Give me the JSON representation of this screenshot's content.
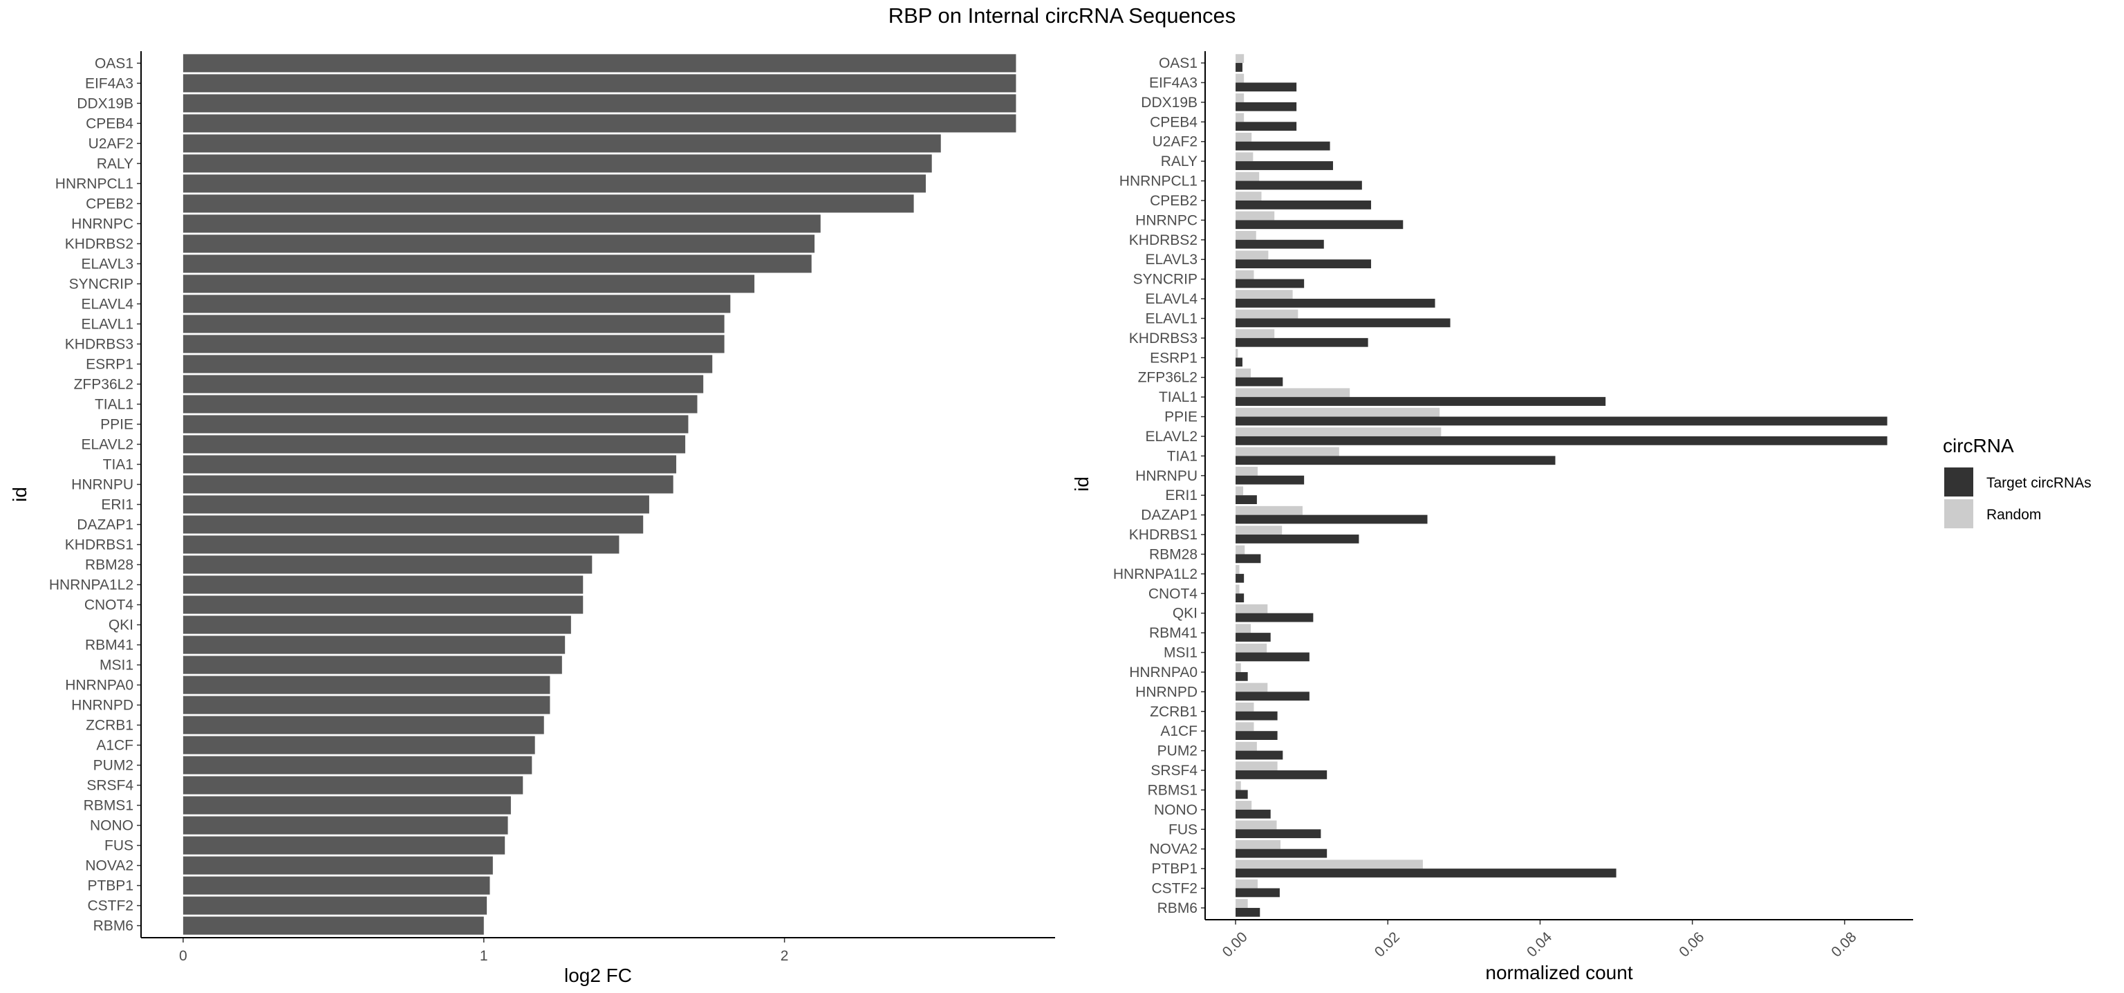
{
  "title": "RBP on Internal circRNA Sequences",
  "colors": {
    "fc_bar": "#595959",
    "target": "#333333",
    "random": "#cccccc",
    "axis": "#000000"
  },
  "chart_data": [
    {
      "type": "bar",
      "orientation": "horizontal",
      "xlabel": "log2 FC",
      "ylabel": "id",
      "xlim": [
        -0.14,
        2.9
      ],
      "xticks": [
        "0",
        "1",
        "2"
      ],
      "grid": false,
      "categories": [
        "OAS1",
        "EIF4A3",
        "DDX19B",
        "CPEB4",
        "U2AF2",
        "RALY",
        "HNRNPCL1",
        "CPEB2",
        "HNRNPC",
        "KHDRBS2",
        "ELAVL3",
        "SYNCRIP",
        "ELAVL4",
        "ELAVL1",
        "KHDRBS3",
        "ESRP1",
        "ZFP36L2",
        "TIAL1",
        "PPIE",
        "ELAVL2",
        "TIA1",
        "HNRNPU",
        "ERI1",
        "DAZAP1",
        "KHDRBS1",
        "RBM28",
        "HNRNPA1L2",
        "CNOT4",
        "QKI",
        "RBM41",
        "MSI1",
        "HNRNPA0",
        "HNRNPD",
        "ZCRB1",
        "A1CF",
        "PUM2",
        "SRSF4",
        "RBMS1",
        "NONO",
        "FUS",
        "NOVA2",
        "PTBP1",
        "CSTF2",
        "RBM6"
      ],
      "values": [
        2.77,
        2.77,
        2.77,
        2.77,
        2.52,
        2.49,
        2.47,
        2.43,
        2.12,
        2.1,
        2.09,
        1.9,
        1.82,
        1.8,
        1.8,
        1.76,
        1.73,
        1.71,
        1.68,
        1.67,
        1.64,
        1.63,
        1.55,
        1.53,
        1.45,
        1.36,
        1.33,
        1.33,
        1.29,
        1.27,
        1.26,
        1.22,
        1.22,
        1.2,
        1.17,
        1.16,
        1.13,
        1.09,
        1.08,
        1.07,
        1.03,
        1.02,
        1.01,
        1.0
      ]
    },
    {
      "type": "bar",
      "orientation": "horizontal",
      "xlabel": "normalized count",
      "ylabel": "id",
      "xlim": [
        -0.004,
        0.089
      ],
      "xticks": [
        0.0,
        0.02,
        0.04,
        0.06,
        0.08
      ],
      "xtick_labels": [
        "0.00",
        "0.02",
        "0.04",
        "0.06",
        "0.08"
      ],
      "grid": false,
      "legend": {
        "title": "circRNA",
        "position": "right"
      },
      "categories": [
        "OAS1",
        "EIF4A3",
        "DDX19B",
        "CPEB4",
        "U2AF2",
        "RALY",
        "HNRNPCL1",
        "CPEB2",
        "HNRNPC",
        "KHDRBS2",
        "ELAVL3",
        "SYNCRIP",
        "ELAVL4",
        "ELAVL1",
        "KHDRBS3",
        "ESRP1",
        "ZFP36L2",
        "TIAL1",
        "PPIE",
        "ELAVL2",
        "TIA1",
        "HNRNPU",
        "ERI1",
        "DAZAP1",
        "KHDRBS1",
        "RBM28",
        "HNRNPA1L2",
        "CNOT4",
        "QKI",
        "RBM41",
        "MSI1",
        "HNRNPA0",
        "HNRNPD",
        "ZCRB1",
        "A1CF",
        "PUM2",
        "SRSF4",
        "RBMS1",
        "NONO",
        "FUS",
        "NOVA2",
        "PTBP1",
        "CSTF2",
        "RBM6"
      ],
      "series": [
        {
          "name": "Target circRNAs",
          "values": [
            0.0009,
            0.008,
            0.008,
            0.008,
            0.0124,
            0.0128,
            0.0166,
            0.0178,
            0.022,
            0.0116,
            0.0178,
            0.009,
            0.0262,
            0.0282,
            0.0174,
            0.0009,
            0.0062,
            0.0486,
            0.0856,
            0.0856,
            0.042,
            0.009,
            0.0028,
            0.0252,
            0.0162,
            0.0033,
            0.0011,
            0.0011,
            0.0102,
            0.0046,
            0.0097,
            0.0016,
            0.0097,
            0.0055,
            0.0055,
            0.0062,
            0.012,
            0.0016,
            0.0046,
            0.0112,
            0.012,
            0.05,
            0.0058,
            0.0032
          ]
        },
        {
          "name": "Random",
          "values": [
            0.0011,
            0.0011,
            0.0011,
            0.0011,
            0.0021,
            0.0023,
            0.0031,
            0.0034,
            0.0051,
            0.0027,
            0.0043,
            0.0024,
            0.0075,
            0.0082,
            0.0051,
            0.0003,
            0.002,
            0.015,
            0.0268,
            0.027,
            0.0136,
            0.0029,
            0.001,
            0.0088,
            0.0061,
            0.0012,
            0.0005,
            0.0005,
            0.0042,
            0.002,
            0.0041,
            0.0007,
            0.0042,
            0.0024,
            0.0024,
            0.0028,
            0.0055,
            0.0007,
            0.0021,
            0.0054,
            0.0059,
            0.0246,
            0.0029,
            0.0016
          ]
        }
      ]
    }
  ]
}
